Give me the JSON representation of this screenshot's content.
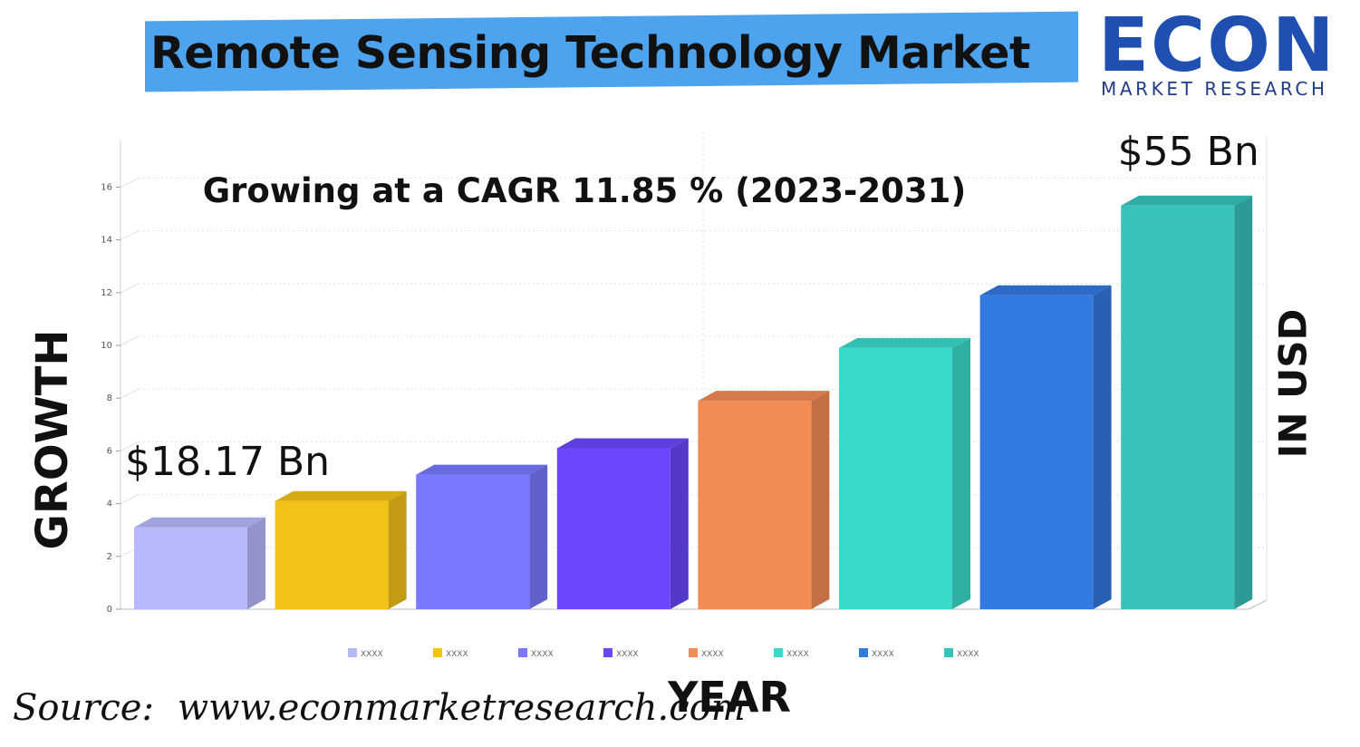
{
  "header": {
    "title": "Remote Sensing Technology Market",
    "logo_word": "ECON",
    "logo_sub": "MARKET RESEARCH"
  },
  "source": {
    "label": "Source:",
    "url": "www.econmarketresearch.com"
  },
  "colors": {
    "banner": "#4da3ee",
    "logo": "#1f4fb0"
  },
  "chart_data": {
    "type": "bar",
    "title": "Growing at a CAGR 11.85 % (2023-2031)",
    "xlabel": "YEAR",
    "ylabel": "GROWTH",
    "ylabel_right": "IN USD",
    "ylim": [
      0,
      17
    ],
    "yticks": [
      0,
      2,
      4,
      6,
      8,
      10,
      12,
      14,
      16
    ],
    "grid": true,
    "legend_position": "bottom",
    "categories": [
      "XXXX",
      "XXXX",
      "XXXX",
      "XXXX",
      "XXXX",
      "XXXX",
      "XXXX",
      "XXXX"
    ],
    "values": [
      3.1,
      4.1,
      5.1,
      6.1,
      7.9,
      9.9,
      11.9,
      15.3
    ],
    "colors": [
      "#b8b9fc",
      "#f2c216",
      "#7879fe",
      "#6b46fb",
      "#f28b54",
      "#3bd9cb",
      "#3279e0",
      "#37c2bb"
    ],
    "annotations": [
      {
        "text": "$18.17 Bn",
        "bar_index": 0
      },
      {
        "text": "$55 Bn",
        "bar_index": 7
      }
    ]
  }
}
